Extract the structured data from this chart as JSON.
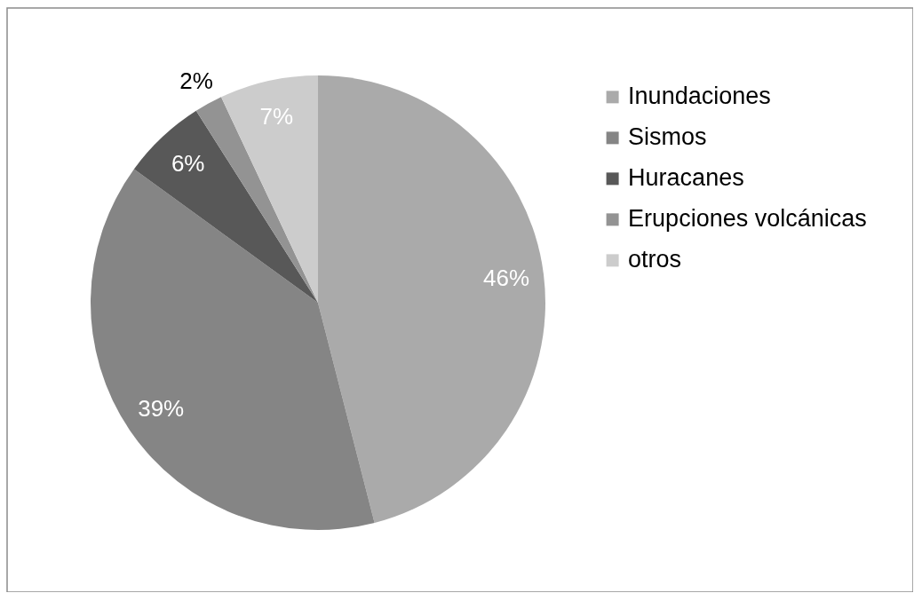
{
  "chart_data": {
    "type": "pie",
    "categories": [
      "Inundaciones",
      "Sismos",
      "Huracanes",
      "Erupciones volcánicas",
      "otros"
    ],
    "values": [
      46,
      39,
      6,
      2,
      7
    ],
    "colors": [
      "#aaaaaa",
      "#858585",
      "#585858",
      "#939393",
      "#cccccc"
    ],
    "value_labels": [
      "46%",
      "39%",
      "6%",
      "2%",
      "7%"
    ],
    "legend": "right"
  }
}
